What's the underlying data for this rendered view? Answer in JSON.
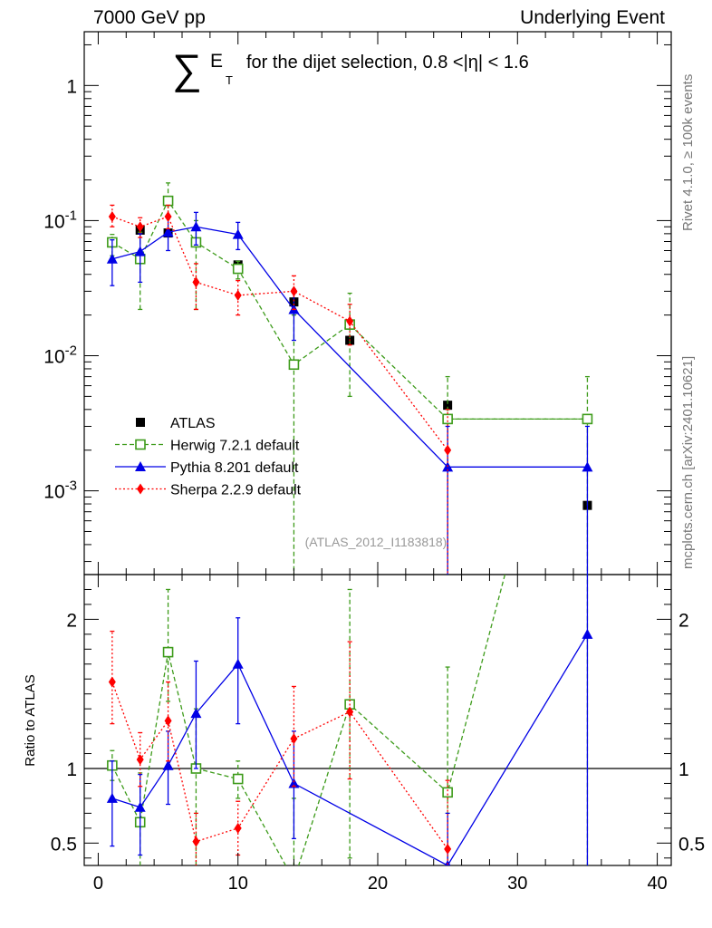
{
  "header": {
    "left": "7000 GeV pp",
    "right": "Underlying Event"
  },
  "side_labels": {
    "rivet": "Rivet 4.1.0, ≥ 100k events",
    "mcplots": "mcplots.cern.ch [arXiv:2401.10621]"
  },
  "title": {
    "sum_symbol": "∑",
    "quantity": "E",
    "subscript": "T",
    "rest": "for the dijet selection, 0.8 <|η| < 1.6"
  },
  "watermark": "(ATLAS_2012_I1183818)",
  "chart_data": {
    "type": "scatter",
    "x_range": [
      -1,
      41
    ],
    "x_ticks": [
      "0",
      "10",
      "20",
      "30",
      "40"
    ],
    "main_y_range": [
      0.00024,
      2.5
    ],
    "main_y_scale": "log",
    "main_y_ticks": [
      "1",
      "10^-1",
      "10^-2",
      "10^-3"
    ],
    "ratio_y_range": [
      0.35,
      2.3
    ],
    "ratio_ylabel": "Ratio to ATLAS",
    "ratio_ticks": [
      "0.5",
      "1",
      "2"
    ],
    "legend_position": "lower-left",
    "series": [
      {
        "name": "ATLAS",
        "color": "#000000",
        "marker": "filled-square",
        "line": "none",
        "points": [
          {
            "x": 1,
            "y": 0.069
          },
          {
            "x": 3,
            "y": 0.085
          },
          {
            "x": 5,
            "y": 0.081
          },
          {
            "x": 7,
            "y": 0.069
          },
          {
            "x": 10,
            "y": 0.047
          },
          {
            "x": 14,
            "y": 0.025
          },
          {
            "x": 18,
            "y": 0.013
          },
          {
            "x": 25,
            "y": 0.0043
          },
          {
            "x": 35,
            "y": 0.00078
          }
        ]
      },
      {
        "name": "Herwig 7.2.1 default",
        "color": "#3d9b1a",
        "marker": "open-square",
        "line": "dashed",
        "steps": [
          {
            "x0": 25,
            "x1": 35,
            "y": 0.0034
          }
        ],
        "points": [
          {
            "x": 1,
            "y": 0.069,
            "lo": 0.055,
            "hi": 0.079,
            "r": 1.02,
            "rlo": 0.92,
            "rhi": 1.12
          },
          {
            "x": 3,
            "y": 0.052,
            "lo": 0.022,
            "hi": 0.082,
            "r": 0.64,
            "rlo": 0.25,
            "rhi": 0.97
          },
          {
            "x": 5,
            "y": 0.14,
            "lo": 0.11,
            "hi": 0.19,
            "r": 1.78,
            "rlo": 1.45,
            "rhi": 2.2
          },
          {
            "x": 7,
            "y": 0.069,
            "lo": 0.022,
            "hi": 0.1,
            "r": 1.0,
            "rlo": 0.3,
            "rhi": 1.4
          },
          {
            "x": 10,
            "y": 0.044,
            "lo": 0.037,
            "hi": 0.05,
            "r": 0.93,
            "rlo": 0.8,
            "rhi": 1.05
          },
          {
            "x": 14,
            "y": 0.0086,
            "lo": 0.0002,
            "hi": 0.02,
            "r": 0.25,
            "rlo": 0.0,
            "rhi": 0.8
          },
          {
            "x": 18,
            "y": 0.017,
            "lo": 0.005,
            "hi": 0.029,
            "r": 1.43,
            "rlo": 0.4,
            "rhi": 2.2
          },
          {
            "x": 25,
            "y": 0.0034,
            "lo": 0.0002,
            "hi": 0.007,
            "r": 0.84,
            "rlo": 0.0,
            "rhi": 1.68
          },
          {
            "x": 35,
            "y": 0.0034,
            "lo": 0.0002,
            "hi": 0.007,
            "r": 4.4,
            "rlo": 0.0,
            "rhi": 9.0
          }
        ]
      },
      {
        "name": "Pythia 8.201 default",
        "color": "#0000e6",
        "marker": "filled-triangle",
        "line": "solid",
        "steps": [
          {
            "x0": 25,
            "x1": 35,
            "y": 0.0015
          }
        ],
        "points": [
          {
            "x": 1,
            "y": 0.052,
            "lo": 0.033,
            "hi": 0.072,
            "r": 0.8,
            "rlo": 0.48,
            "rhi": 1.05
          },
          {
            "x": 3,
            "y": 0.059,
            "lo": 0.035,
            "hi": 0.08,
            "r": 0.74,
            "rlo": 0.42,
            "rhi": 0.96
          },
          {
            "x": 5,
            "y": 0.082,
            "lo": 0.06,
            "hi": 0.105,
            "r": 1.02,
            "rlo": 0.76,
            "rhi": 1.25
          },
          {
            "x": 7,
            "y": 0.09,
            "lo": 0.066,
            "hi": 0.115,
            "r": 1.37,
            "rlo": 1.0,
            "rhi": 1.72
          },
          {
            "x": 10,
            "y": 0.079,
            "lo": 0.061,
            "hi": 0.097,
            "r": 1.7,
            "rlo": 1.3,
            "rhi": 2.01
          },
          {
            "x": 14,
            "y": 0.022,
            "lo": 0.013,
            "hi": 0.031,
            "r": 0.9,
            "rlo": 0.53,
            "rhi": 1.25
          },
          {
            "x": 25,
            "y": 0.0015,
            "lo": 0.0002,
            "hi": 0.003,
            "r": 0.35,
            "rlo": 0.0,
            "rhi": 0.7
          },
          {
            "x": 35,
            "y": 0.0015,
            "lo": 0.0002,
            "hi": 0.003,
            "r": 1.9,
            "rlo": 0.0,
            "rhi": 3.8
          }
        ]
      },
      {
        "name": "Sherpa 2.2.9 default",
        "color": "#ff0000",
        "marker": "filled-diamond",
        "line": "dotted",
        "points": [
          {
            "x": 1,
            "y": 0.107,
            "lo": 0.09,
            "hi": 0.13,
            "r": 1.58,
            "rlo": 1.3,
            "rhi": 1.92
          },
          {
            "x": 3,
            "y": 0.09,
            "lo": 0.075,
            "hi": 0.105,
            "r": 1.06,
            "rlo": 0.88,
            "rhi": 1.24
          },
          {
            "x": 5,
            "y": 0.107,
            "lo": 0.087,
            "hi": 0.13,
            "r": 1.32,
            "rlo": 1.05,
            "rhi": 1.58
          },
          {
            "x": 7,
            "y": 0.035,
            "lo": 0.022,
            "hi": 0.048,
            "r": 0.51,
            "rlo": 0.32,
            "rhi": 0.7
          },
          {
            "x": 10,
            "y": 0.028,
            "lo": 0.02,
            "hi": 0.036,
            "r": 0.6,
            "rlo": 0.42,
            "rhi": 0.78
          },
          {
            "x": 14,
            "y": 0.03,
            "lo": 0.022,
            "hi": 0.039,
            "r": 1.2,
            "rlo": 0.88,
            "rhi": 1.55
          },
          {
            "x": 18,
            "y": 0.018,
            "lo": 0.012,
            "hi": 0.024,
            "r": 1.38,
            "rlo": 0.93,
            "rhi": 1.85
          },
          {
            "x": 25,
            "y": 0.002,
            "lo": 0.0002,
            "hi": 0.004,
            "r": 0.46,
            "rlo": 0.0,
            "rhi": 0.92
          }
        ]
      }
    ]
  }
}
